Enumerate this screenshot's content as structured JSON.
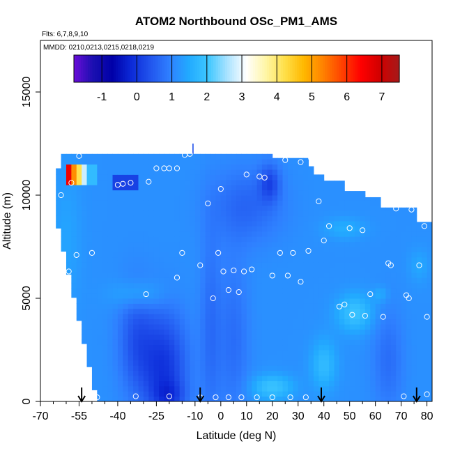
{
  "chart_data": {
    "type": "heatmap",
    "title": "ATOM2 Northbound OSc_PM1_AMS",
    "flights_label": "Flts: 6,7,8,9,10",
    "dates_label": "MMDD: 0210,0213,0215,0218,0219",
    "xlabel": "Latitude (deg N)",
    "ylabel": "Altitude (m)",
    "xlim": [
      -70,
      82
    ],
    "ylim": [
      0,
      17500
    ],
    "x_ticks": [
      -70,
      -55,
      -40,
      -25,
      -10,
      0,
      10,
      20,
      30,
      40,
      50,
      60,
      70,
      80
    ],
    "x_minor_ticks": [
      -65,
      -60,
      -50,
      -45,
      -35,
      -30,
      -20,
      -15,
      -5,
      5,
      15,
      25,
      35,
      45,
      55,
      65,
      75
    ],
    "y_ticks": [
      0,
      5000,
      10000,
      15000
    ],
    "colorbar": {
      "min": -1.8,
      "max": 7.5,
      "ticks": [
        -1,
        0,
        1,
        2,
        3,
        4,
        5,
        6,
        7
      ],
      "colors": [
        "#6a0dd8",
        "#1a0fb0",
        "#0000a8",
        "#0c2ad8",
        "#2255ee",
        "#2f80ff",
        "#22aaff",
        "#3dc7ff",
        "#a8e2ff",
        "#ffffff",
        "#fff6a8",
        "#ffe04a",
        "#ffb800",
        "#ff8200",
        "#ff4200",
        "#ff0000",
        "#d00000",
        "#a51a1a"
      ]
    },
    "arrows_at_latitude": [
      -54,
      -8,
      39,
      76
    ],
    "samples": [
      {
        "lat": -55,
        "alt": 11900
      },
      {
        "lat": -58,
        "alt": 10600
      },
      {
        "lat": -62,
        "alt": 10000
      },
      {
        "lat": -59,
        "alt": 6300
      },
      {
        "lat": -56,
        "alt": 7100
      },
      {
        "lat": -50,
        "alt": 7200
      },
      {
        "lat": -40,
        "alt": 10500
      },
      {
        "lat": -38,
        "alt": 10550
      },
      {
        "lat": -35,
        "alt": 10600
      },
      {
        "lat": -28,
        "alt": 10650
      },
      {
        "lat": -25,
        "alt": 11300
      },
      {
        "lat": -22,
        "alt": 11300
      },
      {
        "lat": -20,
        "alt": 11300
      },
      {
        "lat": -17,
        "alt": 11300
      },
      {
        "lat": -14,
        "alt": 11950
      },
      {
        "lat": -12,
        "alt": 12000
      },
      {
        "lat": -15,
        "alt": 7200
      },
      {
        "lat": -17,
        "alt": 6000
      },
      {
        "lat": -29,
        "alt": 5200
      },
      {
        "lat": -8,
        "alt": 6600
      },
      {
        "lat": -5,
        "alt": 9600
      },
      {
        "lat": 0,
        "alt": 10300
      },
      {
        "lat": -3,
        "alt": 5000
      },
      {
        "lat": -1,
        "alt": 7200
      },
      {
        "lat": 1,
        "alt": 6300
      },
      {
        "lat": 5,
        "alt": 6350
      },
      {
        "lat": 9,
        "alt": 6300
      },
      {
        "lat": 12,
        "alt": 6400
      },
      {
        "lat": 7,
        "alt": 5300
      },
      {
        "lat": 3,
        "alt": 5400
      },
      {
        "lat": 10,
        "alt": 11000
      },
      {
        "lat": 15,
        "alt": 10900
      },
      {
        "lat": 17,
        "alt": 10850
      },
      {
        "lat": 20,
        "alt": 6100
      },
      {
        "lat": 23,
        "alt": 7200
      },
      {
        "lat": 26,
        "alt": 6100
      },
      {
        "lat": 28,
        "alt": 7200
      },
      {
        "lat": 31,
        "alt": 5800
      },
      {
        "lat": 34,
        "alt": 7300
      },
      {
        "lat": 38,
        "alt": 9700
      },
      {
        "lat": 40,
        "alt": 7800
      },
      {
        "lat": 42,
        "alt": 8500
      },
      {
        "lat": 50,
        "alt": 8400
      },
      {
        "lat": 55,
        "alt": 8300
      },
      {
        "lat": 46,
        "alt": 4600
      },
      {
        "lat": 48,
        "alt": 4700
      },
      {
        "lat": 51,
        "alt": 4200
      },
      {
        "lat": 56,
        "alt": 4150
      },
      {
        "lat": 58,
        "alt": 5200
      },
      {
        "lat": 63,
        "alt": 4100
      },
      {
        "lat": 65,
        "alt": 6700
      },
      {
        "lat": 66,
        "alt": 6600
      },
      {
        "lat": 68,
        "alt": 9350
      },
      {
        "lat": 72,
        "alt": 5150
      },
      {
        "lat": 73,
        "alt": 5000
      },
      {
        "lat": 74,
        "alt": 9300
      },
      {
        "lat": 77,
        "alt": 6600
      },
      {
        "lat": 79,
        "alt": 8500
      },
      {
        "lat": 80,
        "alt": 4100
      },
      {
        "lat": 25,
        "alt": 11700
      },
      {
        "lat": 31,
        "alt": 11600
      },
      {
        "lat": 35,
        "alt": 11800
      },
      {
        "lat": -48,
        "alt": 200
      },
      {
        "lat": -33,
        "alt": 250
      },
      {
        "lat": -20,
        "alt": 250
      },
      {
        "lat": -8,
        "alt": 200
      },
      {
        "lat": -2,
        "alt": 200
      },
      {
        "lat": 3,
        "alt": 200
      },
      {
        "lat": 8,
        "alt": 200
      },
      {
        "lat": 14,
        "alt": 200
      },
      {
        "lat": 20,
        "alt": 200
      },
      {
        "lat": 27,
        "alt": 200
      },
      {
        "lat": 33,
        "alt": 200
      },
      {
        "lat": 71,
        "alt": 250
      },
      {
        "lat": 80,
        "alt": 350
      }
    ]
  }
}
